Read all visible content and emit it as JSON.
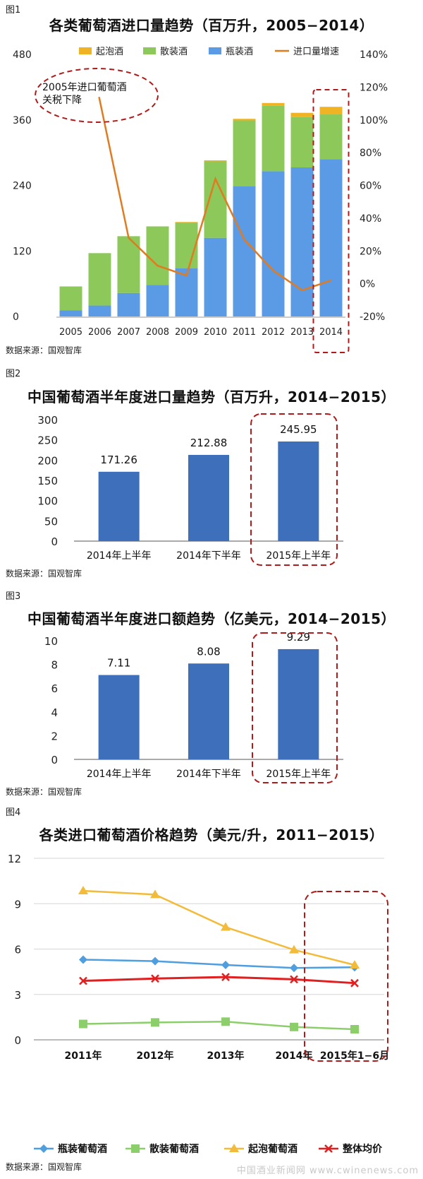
{
  "figures": {
    "fig1": {
      "label": "图1",
      "title": "各类葡萄酒进口量趋势（百万升，2005−2014）",
      "source": "数据来源：国观智库",
      "annotation": [
        "2005年进口葡萄酒",
        "关税下降"
      ]
    },
    "fig2": {
      "label": "图2",
      "title": "中国葡萄酒半年度进口量趋势（百万升，2014−2015）",
      "source": "数据来源：国观智库"
    },
    "fig3": {
      "label": "图3",
      "title": "中国葡萄酒半年度进口额趋势（亿美元，2014−2015）",
      "source": "数据来源：国观智库"
    },
    "fig4": {
      "label": "图4",
      "title": "各类进口葡萄酒价格趋势（美元/升，2011−2015）",
      "source": "数据来源：国观智库"
    }
  },
  "watermark": "中国酒业新闻网  www.cwinenews.com",
  "colors": {
    "sparkling": "#f0b323",
    "bulk": "#8cc85a",
    "bottled": "#5b9be6",
    "growth": "#e07b20",
    "bar": "#3e6fba",
    "highlight": "#b01a1a",
    "total": "#e02020",
    "fig4_bottled": "#4f9ee0",
    "fig4_bulk": "#8ccf6a",
    "fig4_sparkling": "#f2bb3a"
  },
  "chart_data": [
    {
      "type": "bar",
      "stacked": true,
      "categories": [
        "2005",
        "2006",
        "2007",
        "2008",
        "2009",
        "2010",
        "2011",
        "2012",
        "2013",
        "2014"
      ],
      "series": [
        {
          "name": "起泡酒",
          "values": [
            0,
            0,
            0,
            0,
            1,
            2,
            3,
            5,
            8,
            14
          ]
        },
        {
          "name": "散装酒",
          "values": [
            44,
            96,
            104,
            107,
            84,
            140,
            120,
            120,
            92,
            82
          ]
        },
        {
          "name": "瓶装酒",
          "values": [
            11,
            20,
            43,
            58,
            88,
            144,
            239,
            266,
            273,
            288
          ]
        }
      ],
      "line_series": {
        "name": "进口量增速",
        "axis": "right",
        "values": [
          114,
          28,
          11,
          5,
          64,
          27,
          8,
          -4,
          2
        ]
      },
      "ylim": [
        0,
        480
      ],
      "yticks": [
        "0",
        "120",
        "240",
        "360",
        "480"
      ],
      "y2lim": [
        -20,
        140
      ],
      "y2ticks": [
        "-20%",
        "0%",
        "20%",
        "40%",
        "60%",
        "80%",
        "100%",
        "120%",
        "140%"
      ],
      "legend": "top"
    },
    {
      "type": "bar",
      "categories": [
        "2014年上半年",
        "2014年下半年",
        "2015年上半年"
      ],
      "values": [
        171.26,
        212.88,
        245.95
      ],
      "labels": [
        "171.26",
        "212.88",
        "245.95"
      ],
      "ylim": [
        0,
        300
      ],
      "yticks": [
        "0",
        "50",
        "100",
        "150",
        "200",
        "250",
        "300"
      ]
    },
    {
      "type": "bar",
      "categories": [
        "2014年上半年",
        "2014年下半年",
        "2015年上半年"
      ],
      "values": [
        7.11,
        8.08,
        9.29
      ],
      "labels": [
        "7.11",
        "8.08",
        "9.29"
      ],
      "ylim": [
        0,
        10
      ],
      "yticks": [
        "0",
        "2",
        "4",
        "6",
        "8",
        "10"
      ]
    },
    {
      "type": "line",
      "categories": [
        "2011年",
        "2012年",
        "2013年",
        "2014年",
        "2015年1−6月"
      ],
      "series": [
        {
          "name": "瓶装葡萄酒",
          "values": [
            5.3,
            5.2,
            4.95,
            4.75,
            4.8
          ]
        },
        {
          "name": "散装葡萄酒",
          "values": [
            1.05,
            1.15,
            1.2,
            0.85,
            0.7
          ]
        },
        {
          "name": "起泡葡萄酒",
          "values": [
            9.85,
            9.6,
            7.45,
            5.95,
            4.95
          ]
        },
        {
          "name": "整体均价",
          "values": [
            3.9,
            4.05,
            4.15,
            4.0,
            3.75
          ]
        }
      ],
      "ylim": [
        0,
        12
      ],
      "yticks": [
        "0",
        "3",
        "6",
        "9",
        "12"
      ],
      "legend": "bottom"
    }
  ]
}
